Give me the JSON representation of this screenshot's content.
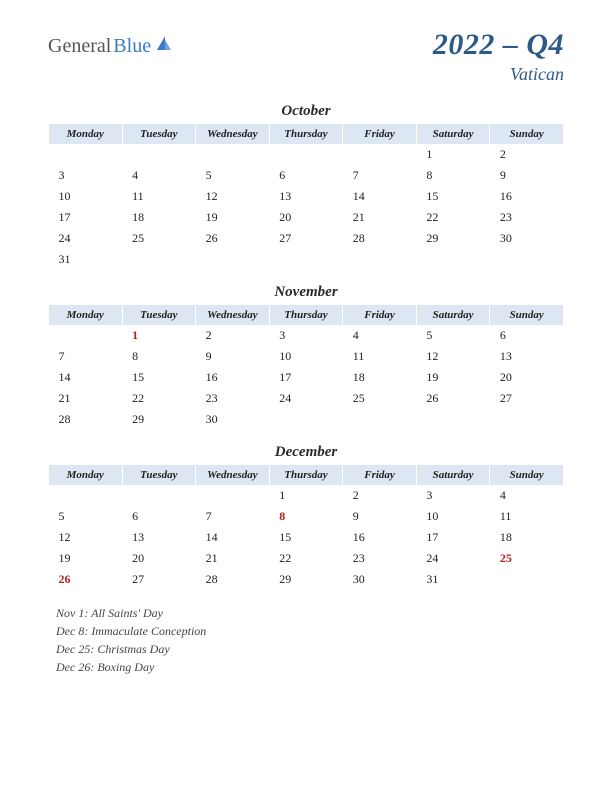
{
  "logo": {
    "part1": "General",
    "part2": "Blue"
  },
  "title": {
    "main": "2022 – Q4",
    "sub": "Vatican"
  },
  "colors": {
    "header_bg": "#dde7f4",
    "title_color": "#2e5a8a",
    "holiday_color": "#b02020",
    "logo_blue": "#3b7bc4"
  },
  "day_headers": [
    "Monday",
    "Tuesday",
    "Wednesday",
    "Thursday",
    "Friday",
    "Saturday",
    "Sunday"
  ],
  "months": [
    {
      "name": "October",
      "weeks": [
        [
          "",
          "",
          "",
          "",
          "",
          "1",
          "2"
        ],
        [
          "3",
          "4",
          "5",
          "6",
          "7",
          "8",
          "9"
        ],
        [
          "10",
          "11",
          "12",
          "13",
          "14",
          "15",
          "16"
        ],
        [
          "17",
          "18",
          "19",
          "20",
          "21",
          "22",
          "23"
        ],
        [
          "24",
          "25",
          "26",
          "27",
          "28",
          "29",
          "30"
        ],
        [
          "31",
          "",
          "",
          "",
          "",
          "",
          ""
        ]
      ],
      "holidays": []
    },
    {
      "name": "November",
      "weeks": [
        [
          "",
          "1",
          "2",
          "3",
          "4",
          "5",
          "6"
        ],
        [
          "7",
          "8",
          "9",
          "10",
          "11",
          "12",
          "13"
        ],
        [
          "14",
          "15",
          "16",
          "17",
          "18",
          "19",
          "20"
        ],
        [
          "21",
          "22",
          "23",
          "24",
          "25",
          "26",
          "27"
        ],
        [
          "28",
          "29",
          "30",
          "",
          "",
          "",
          ""
        ]
      ],
      "holidays": [
        "1"
      ]
    },
    {
      "name": "December",
      "weeks": [
        [
          "",
          "",
          "",
          "1",
          "2",
          "3",
          "4"
        ],
        [
          "5",
          "6",
          "7",
          "8",
          "9",
          "10",
          "11"
        ],
        [
          "12",
          "13",
          "14",
          "15",
          "16",
          "17",
          "18"
        ],
        [
          "19",
          "20",
          "21",
          "22",
          "23",
          "24",
          "25"
        ],
        [
          "26",
          "27",
          "28",
          "29",
          "30",
          "31",
          ""
        ]
      ],
      "holidays": [
        "8",
        "25",
        "26"
      ]
    }
  ],
  "holiday_list": [
    "Nov 1: All Saints' Day",
    "Dec 8: Immaculate Conception",
    "Dec 25: Christmas Day",
    "Dec 26: Boxing Day"
  ]
}
